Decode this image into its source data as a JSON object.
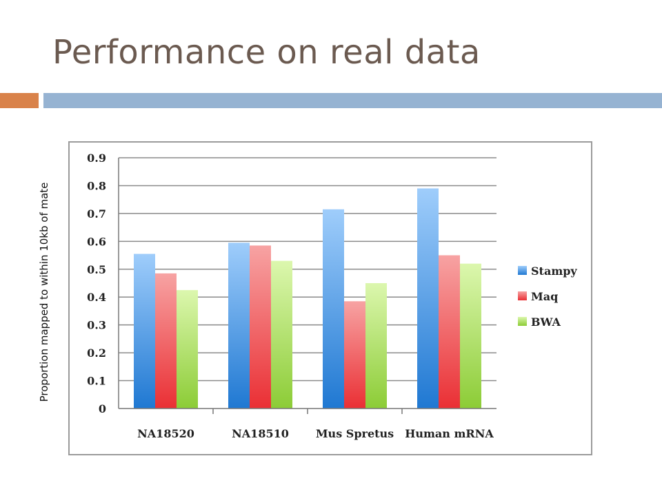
{
  "slide": {
    "title": "Performance on real data"
  },
  "colors": {
    "title_text": "#6b5a50",
    "accent_orange": "#d9824a",
    "accent_blue": "#96b3d2",
    "gridline": "#8a8a8a",
    "frame": "#9a9a9a",
    "stampy_light": "#9fcdfb",
    "stampy_dark": "#1f78d2",
    "maq_light": "#f7a3a3",
    "maq_dark": "#ea2f34",
    "bwa_light": "#dcf7ae",
    "bwa_dark": "#8ccc36"
  },
  "chart_data": {
    "type": "bar",
    "title": "",
    "xlabel": "",
    "ylabel": "Proportion mapped to within 10kb of mate",
    "categories": [
      "NA18520",
      "NA18510",
      "Mus Spretus",
      "Human mRNA"
    ],
    "series": [
      {
        "name": "Stampy",
        "values": [
          0.555,
          0.595,
          0.715,
          0.79
        ]
      },
      {
        "name": "Maq",
        "values": [
          0.485,
          0.585,
          0.385,
          0.55
        ]
      },
      {
        "name": "BWA",
        "values": [
          0.425,
          0.53,
          0.45,
          0.52
        ]
      }
    ],
    "ylim": [
      0,
      0.9
    ],
    "yticks": [
      "0",
      "0.1",
      "0.2",
      "0.3",
      "0.4",
      "0.5",
      "0.6",
      "0.7",
      "0.8",
      "0.9"
    ],
    "grid": true,
    "legend_position": "right"
  }
}
